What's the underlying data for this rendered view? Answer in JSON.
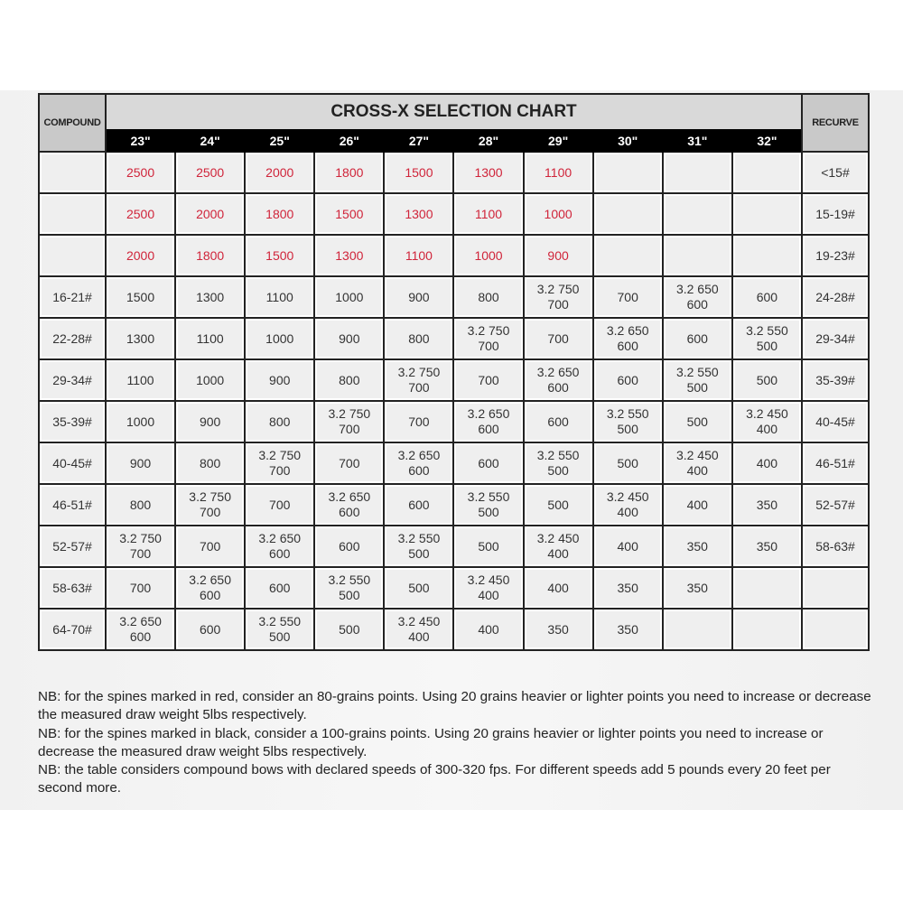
{
  "title": "CROSS-X SELECTION CHART",
  "left_header": "COMPOUND",
  "right_header": "RECURVE",
  "lengths": [
    "23\"",
    "24\"",
    "25\"",
    "26\"",
    "27\"",
    "28\"",
    "29\"",
    "30\"",
    "31\"",
    "32\""
  ],
  "colors": {
    "red": "#d0243a",
    "header_black": "#000000"
  },
  "rows": [
    {
      "compound": "",
      "recurve": "<15#",
      "red": true,
      "cells": [
        [
          "2500"
        ],
        [
          "2500"
        ],
        [
          "2000"
        ],
        [
          "1800"
        ],
        [
          "1500"
        ],
        [
          "1300"
        ],
        [
          "1100"
        ],
        [],
        [],
        []
      ]
    },
    {
      "compound": "",
      "recurve": "15-19#",
      "red": true,
      "cells": [
        [
          "2500"
        ],
        [
          "2000"
        ],
        [
          "1800"
        ],
        [
          "1500"
        ],
        [
          "1300"
        ],
        [
          "1100"
        ],
        [
          "1000"
        ],
        [],
        [],
        []
      ]
    },
    {
      "compound": "",
      "recurve": "19-23#",
      "red": true,
      "cells": [
        [
          "2000"
        ],
        [
          "1800"
        ],
        [
          "1500"
        ],
        [
          "1300"
        ],
        [
          "1100"
        ],
        [
          "1000"
        ],
        [
          "900"
        ],
        [],
        [],
        []
      ]
    },
    {
      "compound": "16-21#",
      "recurve": "24-28#",
      "cells": [
        [
          "1500"
        ],
        [
          "1300"
        ],
        [
          "1100"
        ],
        [
          "1000"
        ],
        [
          "900"
        ],
        [
          "800"
        ],
        [
          "3.2 750",
          "700"
        ],
        [
          "700"
        ],
        [
          "3.2 650",
          "600"
        ],
        [
          "600"
        ]
      ]
    },
    {
      "compound": "22-28#",
      "recurve": "29-34#",
      "cells": [
        [
          "1300"
        ],
        [
          "1100"
        ],
        [
          "1000"
        ],
        [
          "900"
        ],
        [
          "800"
        ],
        [
          "3.2 750",
          "700"
        ],
        [
          "700"
        ],
        [
          "3.2 650",
          "600"
        ],
        [
          "600"
        ],
        [
          "3.2 550",
          "500"
        ]
      ]
    },
    {
      "compound": "29-34#",
      "recurve": "35-39#",
      "cells": [
        [
          "1100"
        ],
        [
          "1000"
        ],
        [
          "900"
        ],
        [
          "800"
        ],
        [
          "3.2 750",
          "700"
        ],
        [
          "700"
        ],
        [
          "3.2 650",
          "600"
        ],
        [
          "600"
        ],
        [
          "3.2 550",
          "500"
        ],
        [
          "500"
        ]
      ]
    },
    {
      "compound": "35-39#",
      "recurve": "40-45#",
      "cells": [
        [
          "1000"
        ],
        [
          "900"
        ],
        [
          "800"
        ],
        [
          "3.2 750",
          "700"
        ],
        [
          "700"
        ],
        [
          "3.2 650",
          "600"
        ],
        [
          "600"
        ],
        [
          "3.2 550",
          "500"
        ],
        [
          "500"
        ],
        [
          "3.2 450",
          "400"
        ]
      ]
    },
    {
      "compound": "40-45#",
      "recurve": "46-51#",
      "cells": [
        [
          "900"
        ],
        [
          "800"
        ],
        [
          "3.2 750",
          "700"
        ],
        [
          "700"
        ],
        [
          "3.2 650",
          "600"
        ],
        [
          "600"
        ],
        [
          "3.2 550",
          "500"
        ],
        [
          "500"
        ],
        [
          "3.2 450",
          "400"
        ],
        [
          "400"
        ]
      ]
    },
    {
      "compound": "46-51#",
      "recurve": "52-57#",
      "cells": [
        [
          "800"
        ],
        [
          "3.2 750",
          "700"
        ],
        [
          "700"
        ],
        [
          "3.2 650",
          "600"
        ],
        [
          "600"
        ],
        [
          "3.2 550",
          "500"
        ],
        [
          "500"
        ],
        [
          "3.2 450",
          "400"
        ],
        [
          "400"
        ],
        [
          "350"
        ]
      ]
    },
    {
      "compound": "52-57#",
      "recurve": "58-63#",
      "cells": [
        [
          "3.2 750",
          "700"
        ],
        [
          "700"
        ],
        [
          "3.2 650",
          "600"
        ],
        [
          "600"
        ],
        [
          "3.2 550",
          "500"
        ],
        [
          "500"
        ],
        [
          "3.2 450",
          "400"
        ],
        [
          "400"
        ],
        [
          "350"
        ],
        [
          "350"
        ]
      ]
    },
    {
      "compound": "58-63#",
      "recurve": "",
      "cells": [
        [
          "700"
        ],
        [
          "3.2 650",
          "600"
        ],
        [
          "600"
        ],
        [
          "3.2 550",
          "500"
        ],
        [
          "500"
        ],
        [
          "3.2 450",
          "400"
        ],
        [
          "400"
        ],
        [
          "350"
        ],
        [
          "350"
        ],
        []
      ]
    },
    {
      "compound": "64-70#",
      "recurve": "",
      "cells": [
        [
          "3.2 650",
          "600"
        ],
        [
          "600"
        ],
        [
          "3.2 550",
          "500"
        ],
        [
          "500"
        ],
        [
          "3.2 450",
          "400"
        ],
        [
          "400"
        ],
        [
          "350"
        ],
        [
          "350"
        ],
        [],
        []
      ]
    }
  ],
  "notes": [
    "NB: for the spines marked in red, consider an 80-grains points. Using 20 grains heavier or lighter points you need to increase or decrease the measured draw weight 5lbs respectively.",
    "NB: for the spines marked in black, consider a 100-grains points. Using 20 grains heavier or lighter points you need to increase or decrease the measured draw weight 5lbs respectively.",
    "NB: the table considers compound bows with declared speeds of 300-320 fps. For different speeds add 5 pounds every 20 feet per second more."
  ]
}
